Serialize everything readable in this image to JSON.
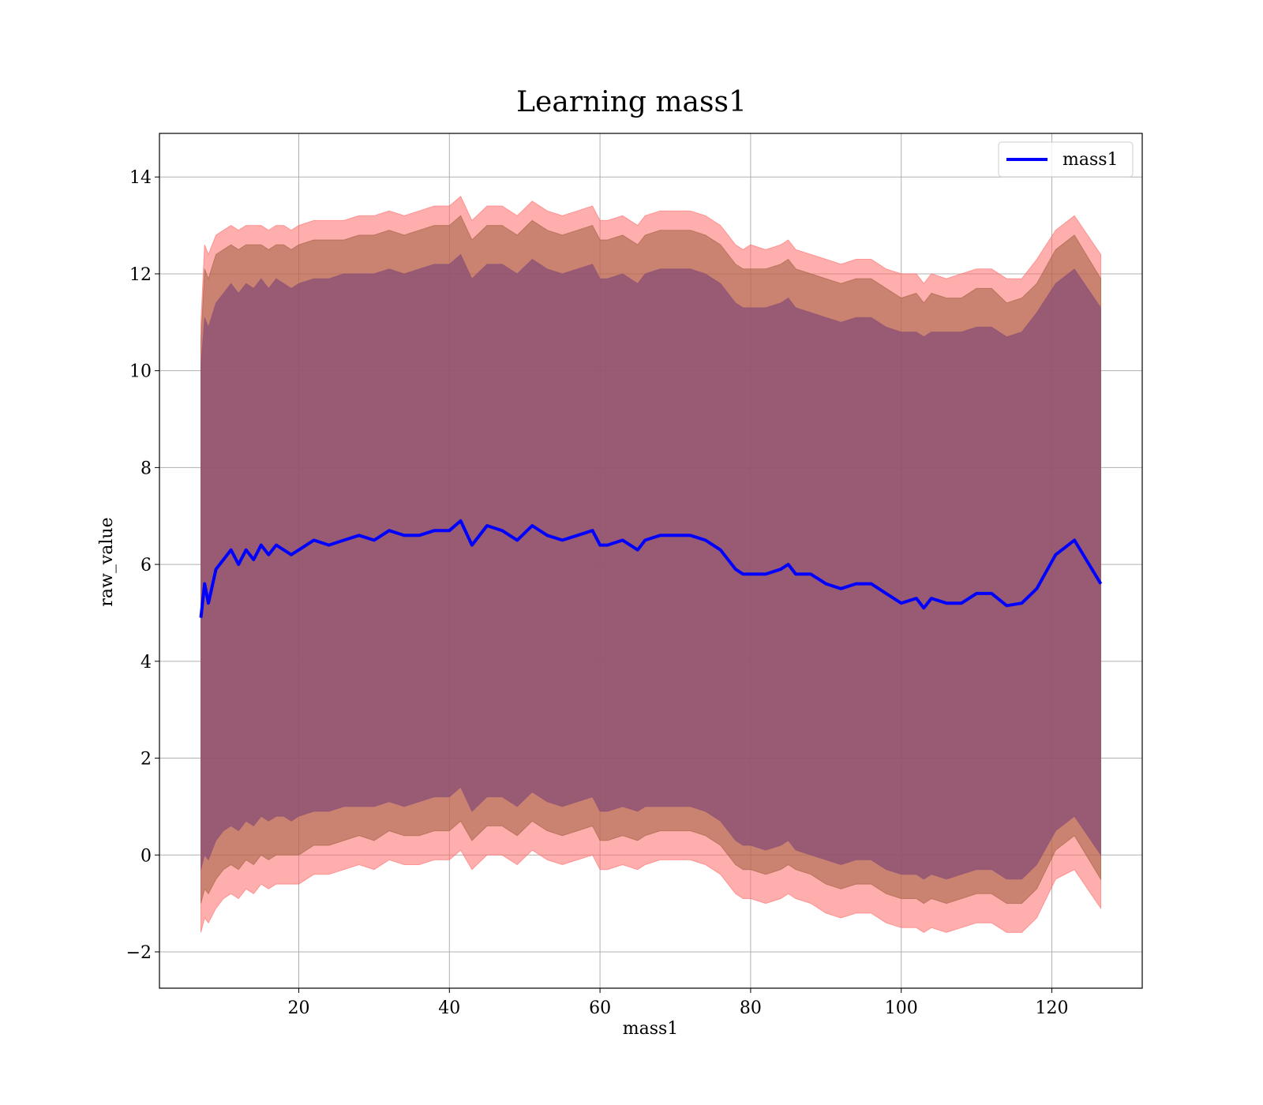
{
  "chart_data": {
    "type": "line",
    "title": "Learning mass1",
    "xlabel": "mass1",
    "ylabel": "raw_value",
    "xlim": [
      1.5,
      132
    ],
    "ylim": [
      -2.75,
      14.9
    ],
    "xticks": [
      20,
      40,
      60,
      80,
      100,
      120
    ],
    "yticks": [
      -2,
      0,
      2,
      4,
      6,
      8,
      10,
      12,
      14
    ],
    "xtick_labels": [
      "20",
      "40",
      "60",
      "80",
      "100",
      "120"
    ],
    "ytick_labels": [
      "−2",
      "0",
      "2",
      "4",
      "6",
      "8",
      "10",
      "12",
      "14"
    ],
    "grid": true,
    "legend_position": "upper-right",
    "series": [
      {
        "name": "mass1",
        "color": "#0000ff",
        "x": [
          7.0,
          7.5,
          8.0,
          9.0,
          10.0,
          11.0,
          12.0,
          13.0,
          14.0,
          15.0,
          16.0,
          17.0,
          18.0,
          19.0,
          20.0,
          22.0,
          24.0,
          26.0,
          28.0,
          30.0,
          32.0,
          34.0,
          36.0,
          38.0,
          40.0,
          41.5,
          43.0,
          45.0,
          47.0,
          49.0,
          51.0,
          53.0,
          55.0,
          57.0,
          59.0,
          60.0,
          61.0,
          63.0,
          65.0,
          66.0,
          68.0,
          70.0,
          72.0,
          74.0,
          76.0,
          78.0,
          79.0,
          80.0,
          82.0,
          84.0,
          85.0,
          86.0,
          88.0,
          90.0,
          92.0,
          94.0,
          96.0,
          98.0,
          100.0,
          102.0,
          103.0,
          104.0,
          106.0,
          108.0,
          110.0,
          112.0,
          114.0,
          116.0,
          118.0,
          120.5,
          123.0,
          126.5
        ],
        "y": [
          4.9,
          5.6,
          5.2,
          5.9,
          6.1,
          6.3,
          6.0,
          6.3,
          6.1,
          6.4,
          6.2,
          6.4,
          6.3,
          6.2,
          6.3,
          6.5,
          6.4,
          6.5,
          6.6,
          6.5,
          6.7,
          6.6,
          6.6,
          6.7,
          6.7,
          6.9,
          6.4,
          6.8,
          6.7,
          6.5,
          6.8,
          6.6,
          6.5,
          6.6,
          6.7,
          6.4,
          6.4,
          6.5,
          6.3,
          6.5,
          6.6,
          6.6,
          6.6,
          6.5,
          6.3,
          5.9,
          5.8,
          5.8,
          5.8,
          5.9,
          6.0,
          5.8,
          5.8,
          5.6,
          5.5,
          5.6,
          5.6,
          5.4,
          5.2,
          5.3,
          5.1,
          5.3,
          5.2,
          5.2,
          5.4,
          5.4,
          5.15,
          5.2,
          5.5,
          6.2,
          6.5,
          5.6
        ]
      }
    ],
    "bands": [
      {
        "color": "#ff6b6b",
        "opacity": 0.55,
        "upper": [
          11.0,
          12.6,
          12.4,
          12.8,
          12.9,
          13.0,
          12.9,
          13.0,
          13.0,
          13.0,
          12.9,
          13.0,
          13.0,
          12.9,
          13.0,
          13.1,
          13.1,
          13.1,
          13.2,
          13.2,
          13.3,
          13.2,
          13.3,
          13.4,
          13.4,
          13.6,
          13.1,
          13.4,
          13.4,
          13.2,
          13.5,
          13.3,
          13.2,
          13.3,
          13.4,
          13.1,
          13.1,
          13.2,
          13.0,
          13.2,
          13.3,
          13.3,
          13.3,
          13.2,
          13.0,
          12.6,
          12.5,
          12.6,
          12.5,
          12.6,
          12.7,
          12.5,
          12.4,
          12.3,
          12.2,
          12.3,
          12.3,
          12.1,
          12.0,
          12.0,
          11.8,
          12.0,
          11.9,
          12.0,
          12.1,
          12.1,
          11.9,
          11.9,
          12.3,
          12.9,
          13.2,
          12.4
        ],
        "lower": [
          -1.6,
          -1.3,
          -1.4,
          -1.1,
          -0.9,
          -0.8,
          -0.9,
          -0.7,
          -0.8,
          -0.6,
          -0.7,
          -0.6,
          -0.6,
          -0.6,
          -0.6,
          -0.4,
          -0.4,
          -0.3,
          -0.2,
          -0.3,
          -0.1,
          -0.2,
          -0.2,
          -0.1,
          -0.1,
          0.1,
          -0.3,
          0.0,
          0.0,
          -0.2,
          0.1,
          -0.1,
          -0.2,
          -0.1,
          0.0,
          -0.3,
          -0.3,
          -0.2,
          -0.3,
          -0.2,
          -0.1,
          -0.1,
          -0.1,
          -0.2,
          -0.4,
          -0.8,
          -0.9,
          -0.9,
          -1.0,
          -0.9,
          -0.8,
          -0.9,
          -1.0,
          -1.2,
          -1.3,
          -1.2,
          -1.2,
          -1.4,
          -1.5,
          -1.5,
          -1.6,
          -1.5,
          -1.6,
          -1.5,
          -1.4,
          -1.4,
          -1.6,
          -1.6,
          -1.3,
          -0.5,
          -0.3,
          -1.1
        ]
      },
      {
        "color": "#a06040",
        "opacity": 0.55,
        "upper": [
          10.6,
          12.1,
          11.9,
          12.4,
          12.5,
          12.6,
          12.5,
          12.6,
          12.6,
          12.6,
          12.5,
          12.6,
          12.6,
          12.5,
          12.6,
          12.7,
          12.7,
          12.7,
          12.8,
          12.8,
          12.9,
          12.8,
          12.9,
          13.0,
          13.0,
          13.2,
          12.7,
          13.0,
          13.0,
          12.8,
          13.1,
          12.9,
          12.8,
          12.9,
          13.0,
          12.7,
          12.7,
          12.8,
          12.6,
          12.8,
          12.9,
          12.9,
          12.9,
          12.8,
          12.6,
          12.2,
          12.1,
          12.1,
          12.1,
          12.2,
          12.3,
          12.1,
          12.0,
          11.9,
          11.8,
          11.9,
          11.9,
          11.7,
          11.5,
          11.6,
          11.4,
          11.6,
          11.5,
          11.5,
          11.7,
          11.7,
          11.4,
          11.5,
          11.8,
          12.5,
          12.8,
          11.9
        ],
        "lower": [
          -1.0,
          -0.7,
          -0.8,
          -0.5,
          -0.3,
          -0.2,
          -0.3,
          -0.1,
          -0.2,
          0.0,
          -0.1,
          0.0,
          0.0,
          0.0,
          0.0,
          0.2,
          0.2,
          0.3,
          0.4,
          0.3,
          0.5,
          0.4,
          0.4,
          0.5,
          0.5,
          0.7,
          0.3,
          0.6,
          0.6,
          0.4,
          0.7,
          0.5,
          0.4,
          0.5,
          0.6,
          0.3,
          0.3,
          0.4,
          0.3,
          0.4,
          0.5,
          0.5,
          0.5,
          0.4,
          0.2,
          -0.2,
          -0.3,
          -0.3,
          -0.4,
          -0.3,
          -0.2,
          -0.3,
          -0.4,
          -0.6,
          -0.7,
          -0.6,
          -0.6,
          -0.8,
          -0.9,
          -0.9,
          -1.0,
          -0.9,
          -1.0,
          -0.9,
          -0.8,
          -0.8,
          -1.0,
          -1.0,
          -0.7,
          0.1,
          0.4,
          -0.5
        ]
      },
      {
        "color": "#8a5075",
        "opacity": 0.78,
        "upper": [
          10.1,
          11.1,
          10.9,
          11.4,
          11.6,
          11.8,
          11.6,
          11.8,
          11.7,
          11.9,
          11.7,
          11.9,
          11.8,
          11.7,
          11.8,
          11.9,
          11.9,
          12.0,
          12.0,
          12.0,
          12.1,
          12.0,
          12.1,
          12.2,
          12.2,
          12.4,
          11.9,
          12.2,
          12.2,
          12.0,
          12.3,
          12.1,
          12.0,
          12.1,
          12.2,
          11.9,
          11.9,
          12.0,
          11.8,
          12.0,
          12.1,
          12.1,
          12.1,
          12.0,
          11.8,
          11.4,
          11.3,
          11.3,
          11.3,
          11.4,
          11.5,
          11.3,
          11.2,
          11.1,
          11.0,
          11.1,
          11.1,
          10.9,
          10.8,
          10.8,
          10.7,
          10.8,
          10.8,
          10.8,
          10.9,
          10.9,
          10.7,
          10.8,
          11.2,
          11.8,
          12.1,
          11.3
        ],
        "lower": [
          -0.3,
          0.0,
          -0.1,
          0.3,
          0.5,
          0.6,
          0.5,
          0.7,
          0.6,
          0.8,
          0.7,
          0.8,
          0.8,
          0.7,
          0.8,
          0.9,
          0.9,
          1.0,
          1.0,
          1.0,
          1.1,
          1.0,
          1.1,
          1.2,
          1.2,
          1.4,
          0.9,
          1.2,
          1.2,
          1.0,
          1.3,
          1.1,
          1.0,
          1.1,
          1.2,
          0.9,
          0.9,
          1.0,
          0.9,
          1.0,
          1.0,
          1.0,
          1.0,
          0.9,
          0.7,
          0.3,
          0.2,
          0.2,
          0.1,
          0.2,
          0.3,
          0.1,
          0.0,
          -0.1,
          -0.2,
          -0.1,
          -0.1,
          -0.3,
          -0.4,
          -0.4,
          -0.5,
          -0.4,
          -0.5,
          -0.4,
          -0.3,
          -0.3,
          -0.5,
          -0.5,
          -0.2,
          0.5,
          0.8,
          0.0
        ]
      }
    ]
  }
}
